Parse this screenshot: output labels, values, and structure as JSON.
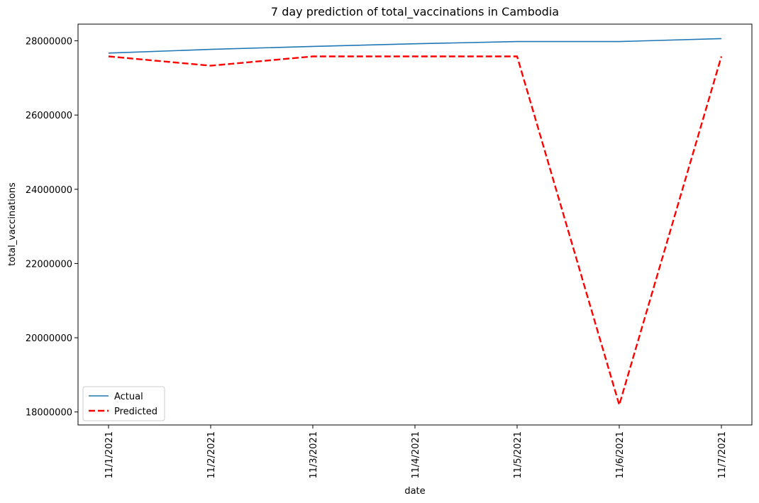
{
  "chart_data": {
    "type": "line",
    "title": "7 day prediction of total_vaccinations in Cambodia",
    "xlabel": "date",
    "ylabel": "total_vaccinations",
    "categories": [
      "11/1/2021",
      "11/2/2021",
      "11/3/2021",
      "11/4/2021",
      "11/5/2021",
      "11/6/2021",
      "11/7/2021"
    ],
    "yticks": [
      "18000000",
      "20000000",
      "22000000",
      "24000000",
      "26000000",
      "28000000"
    ],
    "ylim": [
      17650000,
      28450000
    ],
    "grid": false,
    "legend_position": "lower-left",
    "series": [
      {
        "name": "Actual",
        "color": "#1f77b4",
        "style": "solid",
        "values": [
          27670000,
          27770000,
          27850000,
          27920000,
          27980000,
          27980000,
          28060000
        ]
      },
      {
        "name": "Predicted",
        "color": "#ff0000",
        "style": "dashed",
        "values": [
          27580000,
          27330000,
          27580000,
          27580000,
          27580000,
          18190000,
          27580000
        ]
      }
    ]
  }
}
